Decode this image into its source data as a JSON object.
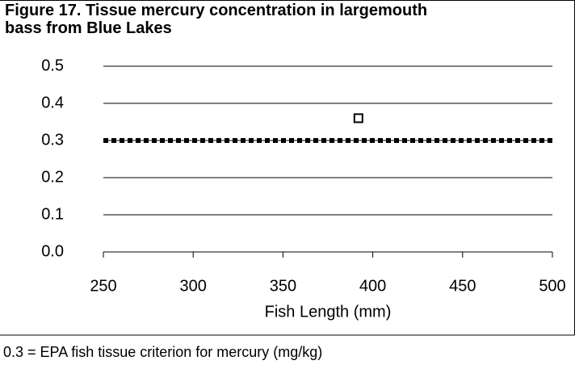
{
  "chart_data": {
    "type": "scatter",
    "title": "Figure 17. Tissue mercury concentration in largemouth bass from Blue Lakes",
    "xlabel": "Fish Length (mm)",
    "annotation": "0.3 = EPA fish tissue criterion for mercury (mg/kg)",
    "xlim": [
      250,
      500
    ],
    "xticks": [
      250,
      300,
      350,
      400,
      450,
      500
    ],
    "ylim": [
      0,
      0.5
    ],
    "yticks": [
      {
        "value": 0,
        "label": "0.0"
      },
      0.1,
      0.2,
      0.3,
      0.4,
      0.5
    ],
    "grid": true,
    "series": [
      {
        "color": "#000000",
        "marker": "square-open",
        "x": [
          392
        ],
        "values": [
          0.36
        ]
      },
      {
        "color": "#000000",
        "style": "dotted",
        "x": [
          250,
          500
        ],
        "values": [
          0.3,
          0.3
        ]
      }
    ]
  }
}
